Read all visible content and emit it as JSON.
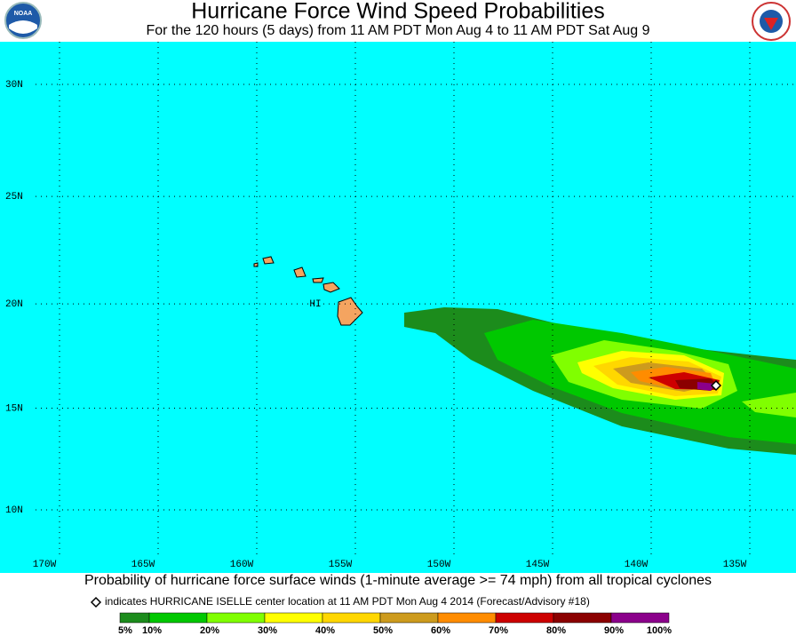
{
  "header": {
    "title": "Hurricane Force Wind Speed Probabilities",
    "subtitle": "For the 120 hours (5 days) from 11 AM PDT Mon Aug 4 to 11 AM PDT Sat Aug 9",
    "logo_left": "NOAA"
  },
  "map": {
    "lat_ticks": [
      {
        "value": 30,
        "label": "30N"
      },
      {
        "value": 25,
        "label": "25N"
      },
      {
        "value": 20,
        "label": "20N"
      },
      {
        "value": 15,
        "label": "15N"
      },
      {
        "value": 10,
        "label": "10N"
      }
    ],
    "lon_ticks": [
      {
        "value": -170,
        "label": "170W"
      },
      {
        "value": -165,
        "label": "165W"
      },
      {
        "value": -160,
        "label": "160W"
      },
      {
        "value": -155,
        "label": "155W"
      },
      {
        "value": -150,
        "label": "150W"
      },
      {
        "value": -145,
        "label": "145W"
      },
      {
        "value": -140,
        "label": "140W"
      },
      {
        "value": -135,
        "label": "135W"
      }
    ],
    "place_label": "HI"
  },
  "footer": {
    "caption": "Probability of hurricane force surface winds (1-minute average >= 74 mph) from all tropical cyclones",
    "note": "indicates HURRICANE ISELLE center location at 11 AM PDT Mon Aug 4 2014 (Forecast/Advisory #18)"
  },
  "legend": {
    "colors": [
      "#1c8c1c",
      "#00c800",
      "#80ff00",
      "#ffff00",
      "#ffd700",
      "#cd9b1d",
      "#ff8c00",
      "#cd0000",
      "#8b0000",
      "#8b008b"
    ],
    "labels": [
      "5%",
      "10%",
      "20%",
      "30%",
      "40%",
      "50%",
      "60%",
      "70%",
      "80%",
      "90%",
      "100%"
    ]
  }
}
